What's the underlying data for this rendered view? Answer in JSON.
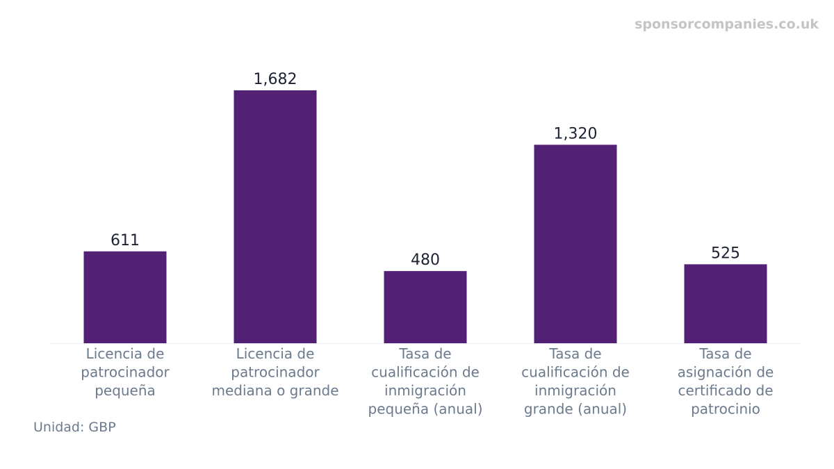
{
  "watermark": "sponsorcompanies.co.uk",
  "unit_note": "Unidad: GBP",
  "colors": {
    "bar": "#522174",
    "axis_line": "#f0eef3"
  },
  "chart_data": {
    "type": "bar",
    "categories": [
      "Licencia de patrocinador pequeña",
      "Licencia de patrocinador mediana o grande",
      "Tasa de cualificación de inmigración pequeña (anual)",
      "Tasa de cualificación de inmigración grande (anual)",
      "Tasa de asignación de certificado de patrocinio"
    ],
    "category_lines": [
      [
        "Licencia de",
        "patrocinador",
        "pequeña"
      ],
      [
        "Licencia de",
        "patrocinador",
        "mediana o grande"
      ],
      [
        "Tasa de",
        "cualificación de",
        "inmigración",
        "pequeña (anual)"
      ],
      [
        "Tasa de",
        "cualificación de",
        "inmigración",
        "grande (anual)"
      ],
      [
        "Tasa de",
        "asignación de",
        "certificado de",
        "patrocinio"
      ]
    ],
    "values": [
      611,
      1682,
      480,
      1320,
      525
    ],
    "value_labels": [
      "611",
      "1,682",
      "480",
      "1,320",
      "525"
    ],
    "ylim": [
      0,
      1682
    ],
    "grid": false,
    "legend": "none"
  }
}
